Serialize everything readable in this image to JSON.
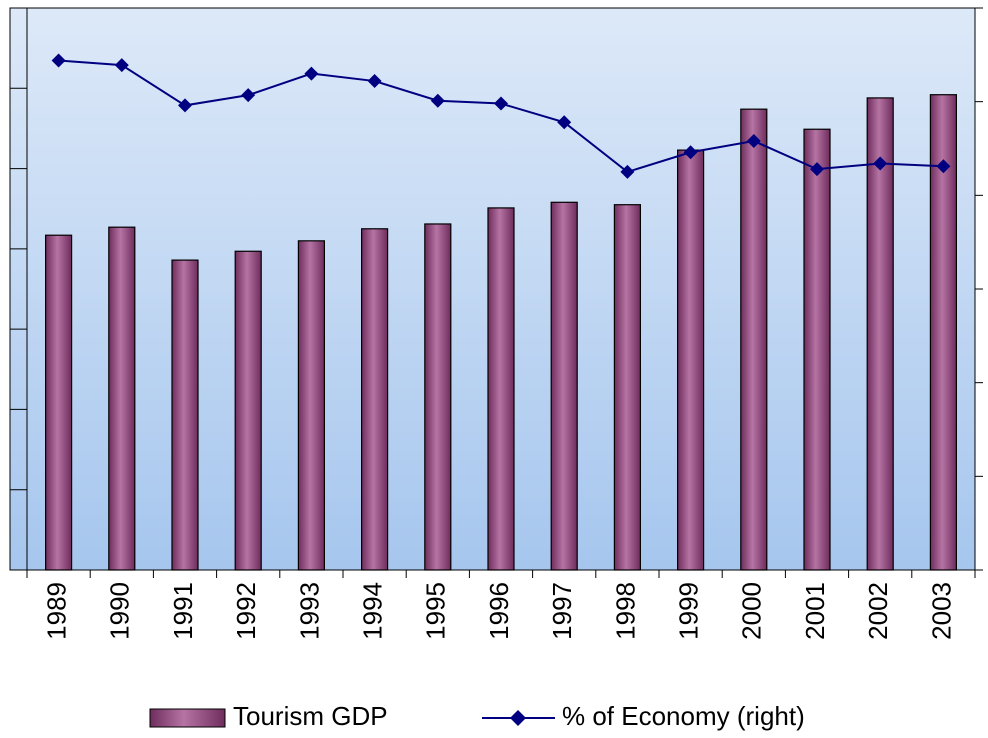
{
  "chart_data": {
    "type": "bar_line",
    "categories": [
      "1989",
      "1990",
      "1991",
      "1992",
      "1993",
      "1994",
      "1995",
      "1996",
      "1997",
      "1998",
      "1999",
      "2000",
      "2001",
      "2002",
      "2003"
    ],
    "series": [
      {
        "name": "Tourism GDP",
        "color": "#9c5487",
        "type": "bar",
        "values": [
          4.17,
          4.27,
          3.86,
          3.97,
          4.1,
          4.25,
          4.31,
          4.51,
          4.58,
          4.55,
          5.23,
          5.74,
          5.49,
          5.88,
          5.92
        ]
      },
      {
        "name": "% of Economy (right)",
        "color": "#000080",
        "type": "line",
        "axis": "y2",
        "values": [
          5.44,
          5.39,
          4.96,
          5.07,
          5.3,
          5.22,
          5.01,
          4.98,
          4.78,
          4.25,
          4.46,
          4.58,
          4.28,
          4.34,
          4.31
        ]
      }
    ],
    "ylim": [
      0,
      7
    ],
    "yticks": [
      0,
      1,
      2,
      3,
      4,
      5,
      6,
      7
    ],
    "y2lim": [
      0,
      6
    ],
    "y2ticks": [
      0,
      1,
      2,
      3,
      4,
      5,
      6
    ],
    "legend": "bottom"
  }
}
